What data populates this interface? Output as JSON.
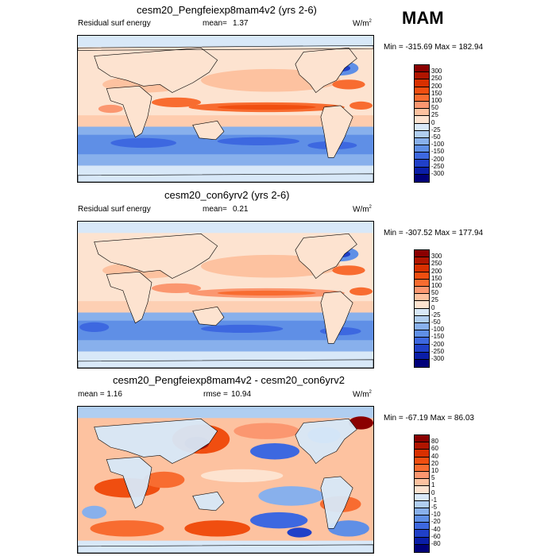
{
  "season": "MAM",
  "panels": [
    {
      "title": "cesm20_Pengfeiexp8mam4v2 (yrs 2-6)",
      "left_label": "Residual surf energy",
      "stat_label": "mean=",
      "stat_value": "1.37",
      "units": "W/m",
      "units_sup": "2",
      "minmax": "Min = -315.69 Max = 182.94",
      "palette": "full",
      "levels": [
        "300",
        "250",
        "200",
        "150",
        "100",
        "50",
        "25",
        "0",
        "-25",
        "-50",
        "-100",
        "-150",
        "-200",
        "-250",
        "-300"
      ]
    },
    {
      "title": "cesm20_con6yrv2 (yrs 2-6)",
      "left_label": "Residual surf energy",
      "stat_label": "mean=",
      "stat_value": "0.21",
      "units": "W/m",
      "units_sup": "2",
      "minmax": "Min = -307.52 Max = 177.94",
      "palette": "full",
      "levels": [
        "300",
        "250",
        "200",
        "150",
        "100",
        "50",
        "25",
        "0",
        "-25",
        "-50",
        "-100",
        "-150",
        "-200",
        "-250",
        "-300"
      ]
    },
    {
      "title": "cesm20_Pengfeiexp8mam4v2 - cesm20_con6yrv2",
      "left_label": "mean =   1.16",
      "stat_label": "rmse =",
      "stat_value": "10.94",
      "units": "W/m",
      "units_sup": "2",
      "minmax": "Min = -67.19 Max =  86.03",
      "palette": "diff",
      "levels": [
        "80",
        "60",
        "40",
        "20",
        "10",
        "5",
        "1",
        "0",
        "-1",
        "-5",
        "-10",
        "-20",
        "-40",
        "-60",
        "-80"
      ]
    }
  ],
  "colors": {
    "full": [
      "#8b0000",
      "#b01500",
      "#d83000",
      "#f04e10",
      "#f86c30",
      "#fb9770",
      "#fdc2a0",
      "#fde3d0",
      "#d8e8f8",
      "#b0cef0",
      "#88b0ec",
      "#5f8fe6",
      "#3d68e0",
      "#2040c8",
      "#0a1ea8",
      "#00007a"
    ],
    "diff": [
      "#8b0000",
      "#b01500",
      "#d83000",
      "#f04e10",
      "#f86c30",
      "#fb9770",
      "#fdc2a0",
      "#fde3d0",
      "#d8e8f8",
      "#b0cef0",
      "#88b0ec",
      "#5f8fe6",
      "#3d68e0",
      "#2040c8",
      "#0a1ea8",
      "#00007a"
    ]
  }
}
